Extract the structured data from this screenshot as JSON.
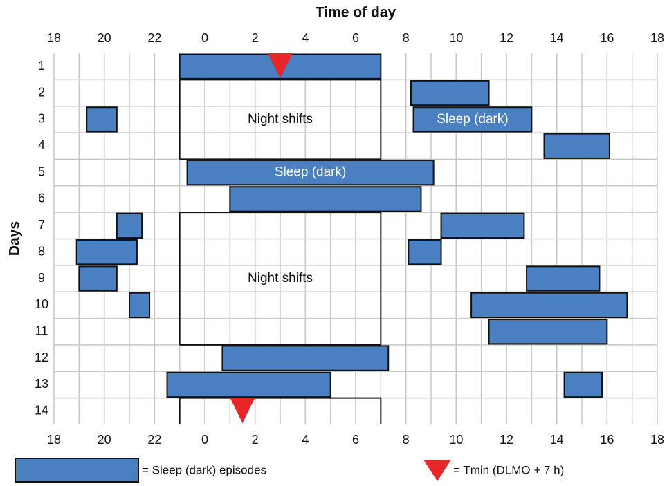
{
  "chart_data": {
    "type": "gantt",
    "title": "Time of day",
    "y_label": "Days",
    "categories": [
      "1",
      "2",
      "3",
      "4",
      "5",
      "6",
      "7",
      "8",
      "9",
      "10",
      "11",
      "12",
      "13",
      "14"
    ],
    "xlim": [
      18,
      42
    ],
    "xticks": [
      18,
      20,
      22,
      {
        "value": 24,
        "label": "0"
      },
      {
        "value": 26,
        "label": "2"
      },
      {
        "value": 28,
        "label": "4"
      },
      {
        "value": 30,
        "label": "6"
      },
      {
        "value": 32,
        "label": "8"
      },
      {
        "value": 34,
        "label": "10"
      },
      {
        "value": 36,
        "label": "12"
      },
      {
        "value": 38,
        "label": "14"
      },
      {
        "value": 40,
        "label": "16"
      },
      {
        "value": 42,
        "label": "18"
      }
    ],
    "grid_step": 1,
    "color": "#4a80c2",
    "marker_color": "#e8262a",
    "episodes": [
      {
        "day": 1,
        "start": 23,
        "end": 31
      },
      {
        "day": 2,
        "start": 32.2,
        "end": 35.3
      },
      {
        "day": 3,
        "start": 19.3,
        "end": 20.5
      },
      {
        "day": 3,
        "start": 32.3,
        "end": 37.0,
        "label": "Sleep (dark)"
      },
      {
        "day": 4,
        "start": 37.5,
        "end": 40.1
      },
      {
        "day": 5,
        "start": 23.3,
        "end": 33.1,
        "label": "Sleep (dark)"
      },
      {
        "day": 6,
        "start": 25.0,
        "end": 32.6
      },
      {
        "day": 7,
        "start": 20.5,
        "end": 21.5
      },
      {
        "day": 7,
        "start": 33.4,
        "end": 36.7
      },
      {
        "day": 8,
        "start": 18.9,
        "end": 21.3
      },
      {
        "day": 8,
        "start": 32.1,
        "end": 33.4
      },
      {
        "day": 9,
        "start": 19.0,
        "end": 20.5
      },
      {
        "day": 9,
        "start": 36.8,
        "end": 39.7
      },
      {
        "day": 10,
        "start": 21.0,
        "end": 21.8
      },
      {
        "day": 10,
        "start": 34.6,
        "end": 40.8
      },
      {
        "day": 11,
        "start": 35.3,
        "end": 40.0
      },
      {
        "day": 12,
        "start": 24.7,
        "end": 31.3
      },
      {
        "day": 13,
        "start": 22.5,
        "end": 29.0
      },
      {
        "day": 13,
        "start": 38.3,
        "end": 39.8
      }
    ],
    "night_shifts": [
      {
        "label": "Night shifts",
        "day_from": 2,
        "day_to": 4,
        "start": 23,
        "end": 31
      },
      {
        "label": "Night shifts",
        "day_from": 7,
        "day_to": 11,
        "start": 23,
        "end": 31
      },
      {
        "day_from": 14,
        "day_to": 14,
        "start": 23,
        "end": 31
      }
    ],
    "tmin": [
      {
        "day": 1,
        "time": 27.0
      },
      {
        "day": 14,
        "time": 25.5
      }
    ],
    "legend": {
      "episodes": "= Sleep (dark) episodes",
      "tmin": "= Tmin (DLMO + 7 h)"
    }
  }
}
